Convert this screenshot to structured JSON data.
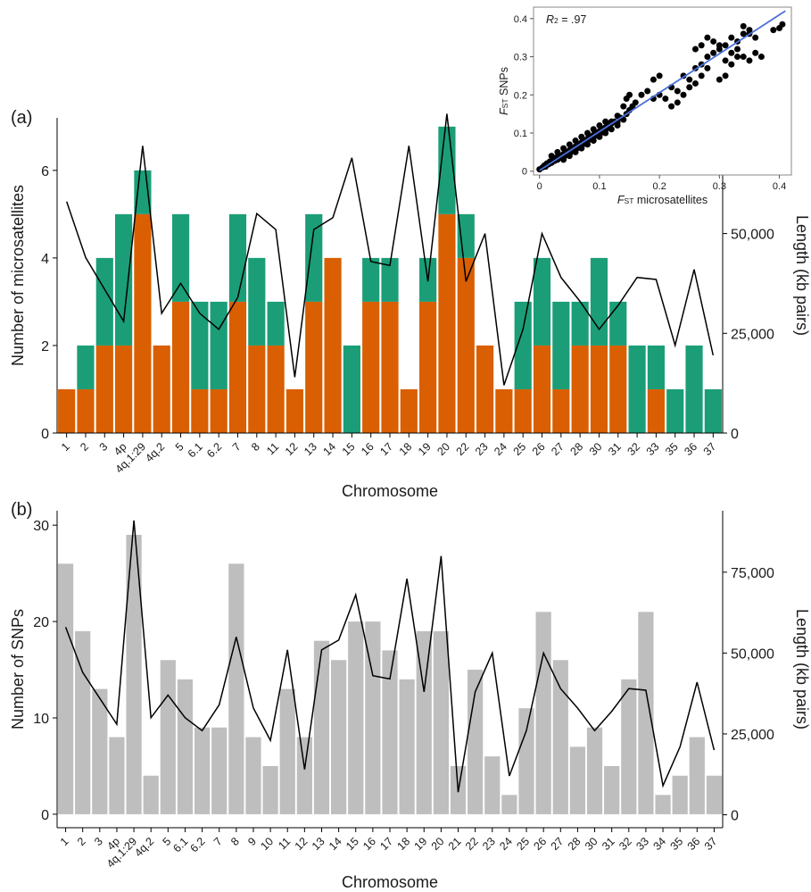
{
  "chart_data": [
    {
      "panel": "(a)",
      "type": "bar",
      "stacked": true,
      "xlabel": "Chromosome",
      "ylabel": "Number of microsatellites",
      "ylabel_right": "Length (kb pairs)",
      "ylim": [
        0,
        7.2
      ],
      "ylim_right": [
        0,
        79000
      ],
      "yticks": [
        0,
        2,
        4,
        6
      ],
      "yticks_right": [
        0,
        25000,
        50000
      ],
      "yticks_right_labels": [
        "0",
        "25,000",
        "50,000"
      ],
      "colors": {
        "orange": "#d95f02",
        "green": "#1b9e77"
      },
      "categories": [
        "1",
        "2",
        "3",
        "4p",
        "4q.1:29",
        "4q.2",
        "5",
        "6.1",
        "6.2",
        "7",
        "8",
        "11",
        "12",
        "13",
        "14",
        "15",
        "16",
        "17",
        "18",
        "19",
        "20",
        "22",
        "23",
        "24",
        "25",
        "26",
        "27",
        "28",
        "30",
        "31",
        "32",
        "33",
        "35",
        "36",
        "37"
      ],
      "series": [
        {
          "color_key": "orange",
          "values": [
            1,
            1,
            2,
            2,
            5,
            2,
            3,
            1,
            1,
            3,
            2,
            2,
            1,
            3,
            4,
            0,
            3,
            3,
            1,
            3,
            5,
            4,
            2,
            1,
            1,
            2,
            1,
            2,
            2,
            2,
            0,
            1,
            0,
            0,
            0
          ]
        },
        {
          "color_key": "green",
          "values": [
            0,
            1,
            2,
            3,
            1,
            0,
            2,
            2,
            2,
            2,
            2,
            1,
            0,
            2,
            0,
            2,
            1,
            1,
            0,
            1,
            2,
            1,
            0,
            0,
            2,
            2,
            2,
            1,
            2,
            1,
            2,
            1,
            1,
            2,
            1
          ]
        }
      ],
      "line_right": [
        58000,
        44000,
        36000,
        28000,
        72000,
        30000,
        37500,
        30000,
        26000,
        34000,
        55000,
        51000,
        14000,
        51000,
        54000,
        69000,
        43000,
        42000,
        72000,
        38000,
        80000,
        38000,
        50000,
        12000,
        26000,
        50000,
        39000,
        33000,
        26000,
        32000,
        39000,
        38500,
        22000,
        41000,
        19500
      ]
    },
    {
      "panel": "(b)",
      "type": "bar",
      "xlabel": "Chromosome",
      "ylabel": "Number of SNPs",
      "ylabel_right": "Length (kb pairs)",
      "ylim": [
        -1.4,
        31.5
      ],
      "ylim_right": [
        -4000,
        94000
      ],
      "yticks": [
        0,
        10,
        20,
        30
      ],
      "yticks_right": [
        0,
        25000,
        50000,
        75000
      ],
      "yticks_right_labels": [
        "0",
        "25,000",
        "50,000",
        "75,000"
      ],
      "colors": {
        "bar": "#bebebe"
      },
      "categories": [
        "1",
        "2",
        "3",
        "4p",
        "4q.1:29",
        "4q.2",
        "5",
        "6.1",
        "6.2",
        "7",
        "8",
        "9",
        "10",
        "11",
        "12",
        "13",
        "14",
        "15",
        "16",
        "17",
        "18",
        "19",
        "20",
        "21",
        "22",
        "23",
        "24",
        "25",
        "26",
        "27",
        "28",
        "30",
        "31",
        "32",
        "33",
        "34",
        "35",
        "36",
        "37"
      ],
      "values": [
        26,
        19,
        13,
        8,
        29,
        4,
        16,
        14,
        9,
        9,
        26,
        8,
        5,
        13,
        8,
        18,
        16,
        20,
        20,
        17,
        14,
        19,
        19,
        5,
        15,
        6,
        2,
        11,
        21,
        16,
        7,
        9,
        5,
        14,
        21,
        2,
        4,
        8,
        4
      ],
      "line_right": [
        58000,
        44000,
        36000,
        28000,
        91000,
        30000,
        37000,
        30000,
        26000,
        34000,
        55000,
        33000,
        23000,
        51000,
        14000,
        51000,
        54000,
        68000,
        43000,
        42000,
        73000,
        38000,
        80000,
        7000,
        38000,
        50000,
        12000,
        26000,
        50000,
        39000,
        33000,
        26000,
        32000,
        39000,
        38500,
        9000,
        21000,
        41000,
        20000
      ]
    },
    {
      "panel": "inset",
      "type": "scatter",
      "xlabel": "F",
      "xlabel_sub": "ST",
      "xlabel_rest": " microsatellites",
      "ylabel": "F",
      "ylabel_sub": "ST",
      "ylabel_rest": " SNPs",
      "xlim": [
        -0.01,
        0.42
      ],
      "ylim": [
        -0.01,
        0.43
      ],
      "xticks": [
        0,
        0.1,
        0.2,
        0.3,
        0.4
      ],
      "xtick_labels": [
        "0",
        "0.1",
        "0.2",
        "0.3",
        "0.4"
      ],
      "yticks": [
        0,
        0.1,
        0.2,
        0.3,
        0.4
      ],
      "ytick_labels": [
        "0",
        "0.1",
        "0.2",
        "0.3",
        "0.4"
      ],
      "annotation_r": "R",
      "annotation_sub": "2",
      "annotation_rest": " = .97",
      "fit": {
        "x": [
          0,
          0.41
        ],
        "y": [
          0.002,
          0.42
        ],
        "color": "#4a6fdc"
      },
      "points": [
        [
          0.0,
          0.005
        ],
        [
          0.005,
          0.01
        ],
        [
          0.008,
          0.015
        ],
        [
          0.01,
          0.012
        ],
        [
          0.012,
          0.02
        ],
        [
          0.015,
          0.018
        ],
        [
          0.017,
          0.025
        ],
        [
          0.02,
          0.022
        ],
        [
          0.022,
          0.03
        ],
        [
          0.025,
          0.027
        ],
        [
          0.027,
          0.035
        ],
        [
          0.03,
          0.03
        ],
        [
          0.032,
          0.038
        ],
        [
          0.035,
          0.04
        ],
        [
          0.037,
          0.035
        ],
        [
          0.04,
          0.045
        ],
        [
          0.042,
          0.04
        ],
        [
          0.045,
          0.05
        ],
        [
          0.047,
          0.048
        ],
        [
          0.05,
          0.055
        ],
        [
          0.052,
          0.05
        ],
        [
          0.055,
          0.06
        ],
        [
          0.057,
          0.058
        ],
        [
          0.06,
          0.065
        ],
        [
          0.062,
          0.06
        ],
        [
          0.065,
          0.07
        ],
        [
          0.067,
          0.068
        ],
        [
          0.07,
          0.075
        ],
        [
          0.072,
          0.07
        ],
        [
          0.075,
          0.08
        ],
        [
          0.077,
          0.078
        ],
        [
          0.08,
          0.085
        ],
        [
          0.082,
          0.082
        ],
        [
          0.085,
          0.09
        ],
        [
          0.087,
          0.088
        ],
        [
          0.09,
          0.095
        ],
        [
          0.092,
          0.092
        ],
        [
          0.095,
          0.1
        ],
        [
          0.097,
          0.098
        ],
        [
          0.1,
          0.105
        ],
        [
          0.102,
          0.1
        ],
        [
          0.105,
          0.11
        ],
        [
          0.107,
          0.108
        ],
        [
          0.11,
          0.115
        ],
        [
          0.112,
          0.112
        ],
        [
          0.115,
          0.12
        ],
        [
          0.12,
          0.125
        ],
        [
          0.125,
          0.13
        ],
        [
          0.13,
          0.128
        ],
        [
          0.135,
          0.14
        ],
        [
          0.14,
          0.135
        ],
        [
          0.145,
          0.15
        ],
        [
          0.15,
          0.16
        ],
        [
          0.155,
          0.17
        ],
        [
          0.16,
          0.18
        ],
        [
          0.15,
          0.2
        ],
        [
          0.145,
          0.19
        ],
        [
          0.14,
          0.17
        ],
        [
          0.13,
          0.145
        ],
        [
          0.12,
          0.13
        ],
        [
          0.04,
          0.06
        ],
        [
          0.05,
          0.07
        ],
        [
          0.06,
          0.08
        ],
        [
          0.07,
          0.09
        ],
        [
          0.08,
          0.1
        ],
        [
          0.09,
          0.11
        ],
        [
          0.1,
          0.12
        ],
        [
          0.11,
          0.13
        ],
        [
          0.03,
          0.05
        ],
        [
          0.02,
          0.04
        ],
        [
          0.06,
          0.05
        ],
        [
          0.07,
          0.06
        ],
        [
          0.08,
          0.07
        ],
        [
          0.09,
          0.08
        ],
        [
          0.1,
          0.09
        ],
        [
          0.11,
          0.1
        ],
        [
          0.12,
          0.11
        ],
        [
          0.13,
          0.12
        ],
        [
          0.05,
          0.04
        ],
        [
          0.04,
          0.03
        ],
        [
          0.2,
          0.2
        ],
        [
          0.21,
          0.19
        ],
        [
          0.22,
          0.22
        ],
        [
          0.23,
          0.21
        ],
        [
          0.24,
          0.25
        ],
        [
          0.25,
          0.24
        ],
        [
          0.26,
          0.27
        ],
        [
          0.27,
          0.28
        ],
        [
          0.28,
          0.3
        ],
        [
          0.29,
          0.31
        ],
        [
          0.3,
          0.32
        ],
        [
          0.31,
          0.33
        ],
        [
          0.32,
          0.35
        ],
        [
          0.33,
          0.34
        ],
        [
          0.34,
          0.36
        ],
        [
          0.35,
          0.37
        ],
        [
          0.29,
          0.34
        ],
        [
          0.3,
          0.33
        ],
        [
          0.28,
          0.35
        ],
        [
          0.27,
          0.33
        ],
        [
          0.26,
          0.32
        ],
        [
          0.3,
          0.24
        ],
        [
          0.31,
          0.25
        ],
        [
          0.32,
          0.28
        ],
        [
          0.33,
          0.3
        ],
        [
          0.34,
          0.3
        ],
        [
          0.35,
          0.29
        ],
        [
          0.36,
          0.31
        ],
        [
          0.37,
          0.3
        ],
        [
          0.35,
          0.36
        ],
        [
          0.34,
          0.38
        ],
        [
          0.4,
          0.375
        ],
        [
          0.405,
          0.385
        ],
        [
          0.39,
          0.37
        ],
        [
          0.36,
          0.35
        ],
        [
          0.22,
          0.17
        ],
        [
          0.23,
          0.18
        ],
        [
          0.24,
          0.2
        ],
        [
          0.2,
          0.25
        ],
        [
          0.19,
          0.24
        ],
        [
          0.18,
          0.21
        ],
        [
          0.17,
          0.2
        ],
        [
          0.19,
          0.19
        ],
        [
          0.25,
          0.22
        ],
        [
          0.27,
          0.25
        ],
        [
          0.28,
          0.27
        ],
        [
          0.31,
          0.29
        ],
        [
          0.32,
          0.31
        ],
        [
          0.33,
          0.32
        ],
        [
          0.26,
          0.23
        ]
      ]
    }
  ]
}
